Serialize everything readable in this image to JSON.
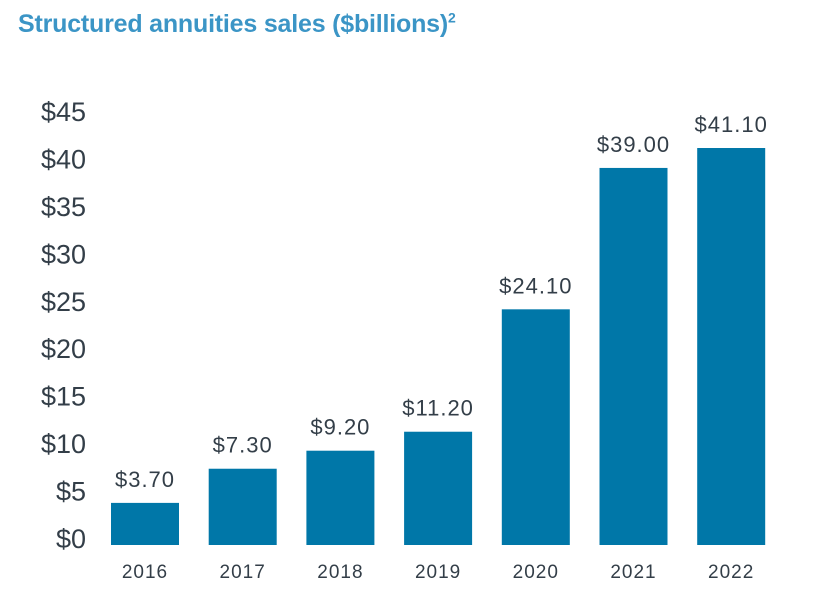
{
  "title": "Structured annuities sales ($billions)",
  "title_footnote": "2",
  "chart_data": {
    "type": "bar",
    "title": "Structured annuities sales ($billions)",
    "categories": [
      "2016",
      "2017",
      "2018",
      "2019",
      "2020",
      "2021",
      "2022"
    ],
    "values": [
      3.7,
      7.3,
      9.2,
      11.2,
      24.1,
      39.0,
      41.1
    ],
    "data_labels": [
      "$3.70",
      "$7.30",
      "$9.20",
      "$11.20",
      "$24.10",
      "$39.00",
      "$41.10"
    ],
    "yticks": [
      0,
      5,
      10,
      15,
      20,
      25,
      30,
      35,
      40,
      45
    ],
    "ytick_labels": [
      "$0",
      "$5",
      "$10",
      "$15",
      "$20",
      "$25",
      "$30",
      "$35",
      "$40",
      "$45"
    ],
    "ylim": [
      0,
      45
    ],
    "xlabel": "",
    "ylabel": "",
    "grid": false,
    "bar_color": "#0077a8"
  }
}
